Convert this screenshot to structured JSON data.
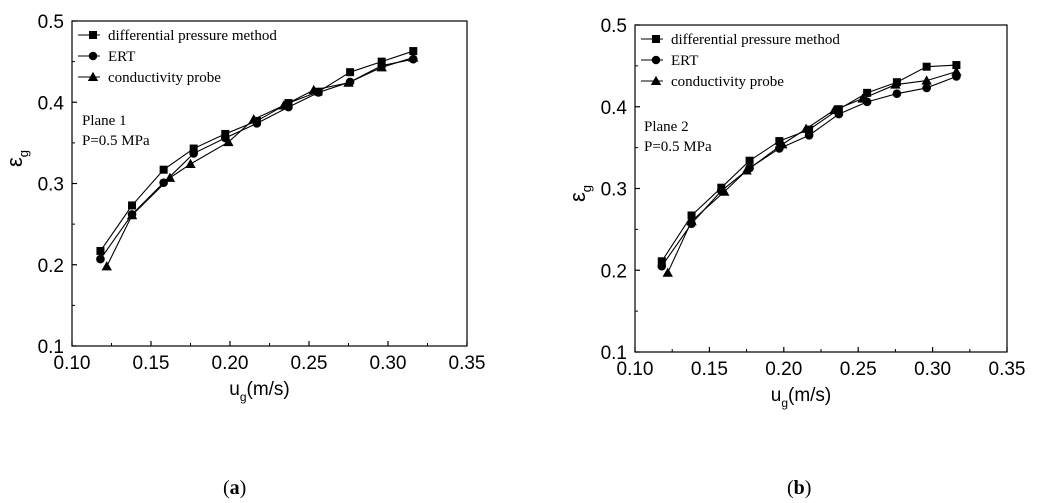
{
  "chart_data": [
    {
      "type": "line",
      "panel_label": "a",
      "xlabel": "u",
      "xlabel_sub": "g",
      "xlabel_unit": "(m/s)",
      "ylabel": "ε",
      "ylabel_sub": "g",
      "xlim": [
        0.1,
        0.35
      ],
      "ylim": [
        0.1,
        0.5
      ],
      "xticks": [
        "0.10",
        "0.15",
        "0.20",
        "0.25",
        "0.30",
        "0.35"
      ],
      "yticks": [
        "0.1",
        "0.2",
        "0.3",
        "0.4",
        "0.5"
      ],
      "legend_position": "top-left",
      "annotations": [
        "Plane 1",
        "P=0.5 MPa"
      ],
      "series": [
        {
          "name": "differential pressure method",
          "marker": "square",
          "x": [
            0.118,
            0.138,
            0.158,
            0.177,
            0.197,
            0.217,
            0.237,
            0.256,
            0.276,
            0.296,
            0.316
          ],
          "y": [
            0.217,
            0.273,
            0.317,
            0.343,
            0.361,
            0.377,
            0.399,
            0.413,
            0.437,
            0.45,
            0.463
          ]
        },
        {
          "name": "ERT",
          "marker": "circle",
          "x": [
            0.118,
            0.138,
            0.158,
            0.177,
            0.197,
            0.217,
            0.237,
            0.256,
            0.276,
            0.296,
            0.316
          ],
          "y": [
            0.207,
            0.262,
            0.301,
            0.337,
            0.356,
            0.374,
            0.394,
            0.412,
            0.425,
            0.445,
            0.453
          ]
        },
        {
          "name": "conductivity probe",
          "marker": "triangle",
          "x": [
            0.122,
            0.138,
            0.162,
            0.175,
            0.199,
            0.215,
            0.234,
            0.253,
            0.275,
            0.296,
            0.316
          ],
          "y": [
            0.198,
            0.261,
            0.307,
            0.324,
            0.351,
            0.379,
            0.396,
            0.415,
            0.424,
            0.443,
            0.455
          ]
        }
      ]
    },
    {
      "type": "line",
      "panel_label": "b",
      "xlabel": "u",
      "xlabel_sub": "g",
      "xlabel_unit": "(m/s)",
      "ylabel": "ε",
      "ylabel_sub": "g",
      "xlim": [
        0.1,
        0.35
      ],
      "ylim": [
        0.1,
        0.5
      ],
      "xticks": [
        "0.10",
        "0.15",
        "0.20",
        "0.25",
        "0.30",
        "0.35"
      ],
      "yticks": [
        "0.1",
        "0.2",
        "0.3",
        "0.4",
        "0.5"
      ],
      "legend_position": "top-left",
      "annotations": [
        "Plane 2",
        "P=0.5 MPa"
      ],
      "series": [
        {
          "name": "differential pressure method",
          "marker": "square",
          "x": [
            0.118,
            0.138,
            0.158,
            0.177,
            0.197,
            0.217,
            0.237,
            0.256,
            0.276,
            0.296,
            0.316
          ],
          "y": [
            0.211,
            0.267,
            0.301,
            0.334,
            0.358,
            0.372,
            0.397,
            0.417,
            0.43,
            0.449,
            0.451
          ]
        },
        {
          "name": "ERT",
          "marker": "circle",
          "x": [
            0.118,
            0.138,
            0.158,
            0.177,
            0.197,
            0.217,
            0.237,
            0.256,
            0.276,
            0.296,
            0.316
          ],
          "y": [
            0.205,
            0.257,
            0.297,
            0.325,
            0.349,
            0.365,
            0.391,
            0.406,
            0.416,
            0.423,
            0.437
          ]
        },
        {
          "name": "conductivity probe",
          "marker": "triangle",
          "x": [
            0.122,
            0.138,
            0.16,
            0.175,
            0.199,
            0.215,
            0.234,
            0.253,
            0.275,
            0.296,
            0.316
          ],
          "y": [
            0.197,
            0.26,
            0.296,
            0.322,
            0.354,
            0.373,
            0.396,
            0.41,
            0.427,
            0.432,
            0.443
          ]
        }
      ]
    }
  ]
}
